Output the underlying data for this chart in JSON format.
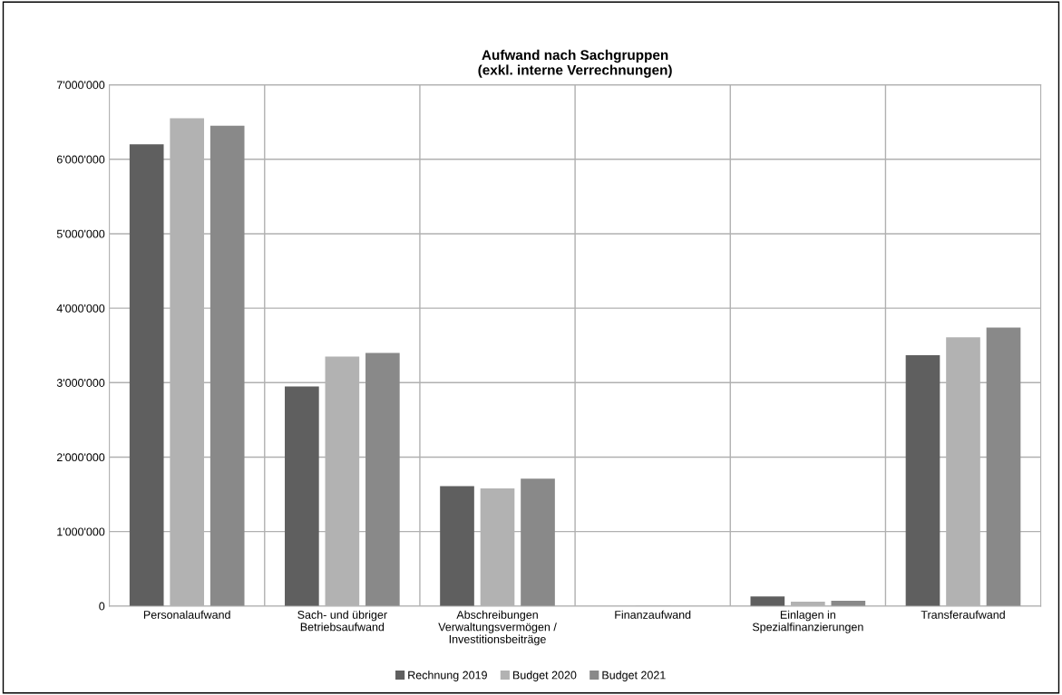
{
  "chart_data": {
    "type": "bar",
    "title": "Aufwand nach Sachgruppen\n(exkl. interne Verrechnungen)",
    "categories": [
      "Personalaufwand",
      "Sach- und übriger\nBetriebsaufwand",
      "Abschreibungen\nVerwaltungsvermögen /\nInvestitionsbeiträge",
      "Finanzaufwand",
      "Einlagen in\nSpezialfinanzierungen",
      "Transferaufwand"
    ],
    "series": [
      {
        "name": "Rechnung 2019",
        "color": "#5f5f5f",
        "values": [
          6200000,
          2950000,
          1610000,
          0,
          130000,
          3370000
        ]
      },
      {
        "name": "Budget 2020",
        "color": "#b2b2b2",
        "values": [
          6550000,
          3350000,
          1580000,
          10000,
          60000,
          3610000
        ]
      },
      {
        "name": "Budget 2021",
        "color": "#898989",
        "values": [
          6450000,
          3400000,
          1710000,
          0,
          70000,
          3740000
        ]
      }
    ],
    "ylim": [
      0,
      7000000
    ],
    "yticks": [
      {
        "value": 0,
        "label": "0"
      },
      {
        "value": 1000000,
        "label": "1'000'000"
      },
      {
        "value": 2000000,
        "label": "2'000'000"
      },
      {
        "value": 3000000,
        "label": "3'000'000"
      },
      {
        "value": 4000000,
        "label": "4'000'000"
      },
      {
        "value": 5000000,
        "label": "5'000'000"
      },
      {
        "value": 6000000,
        "label": "6'000'000"
      },
      {
        "value": 7000000,
        "label": "7'000'000"
      }
    ],
    "grid": true,
    "legend": "bottom"
  }
}
